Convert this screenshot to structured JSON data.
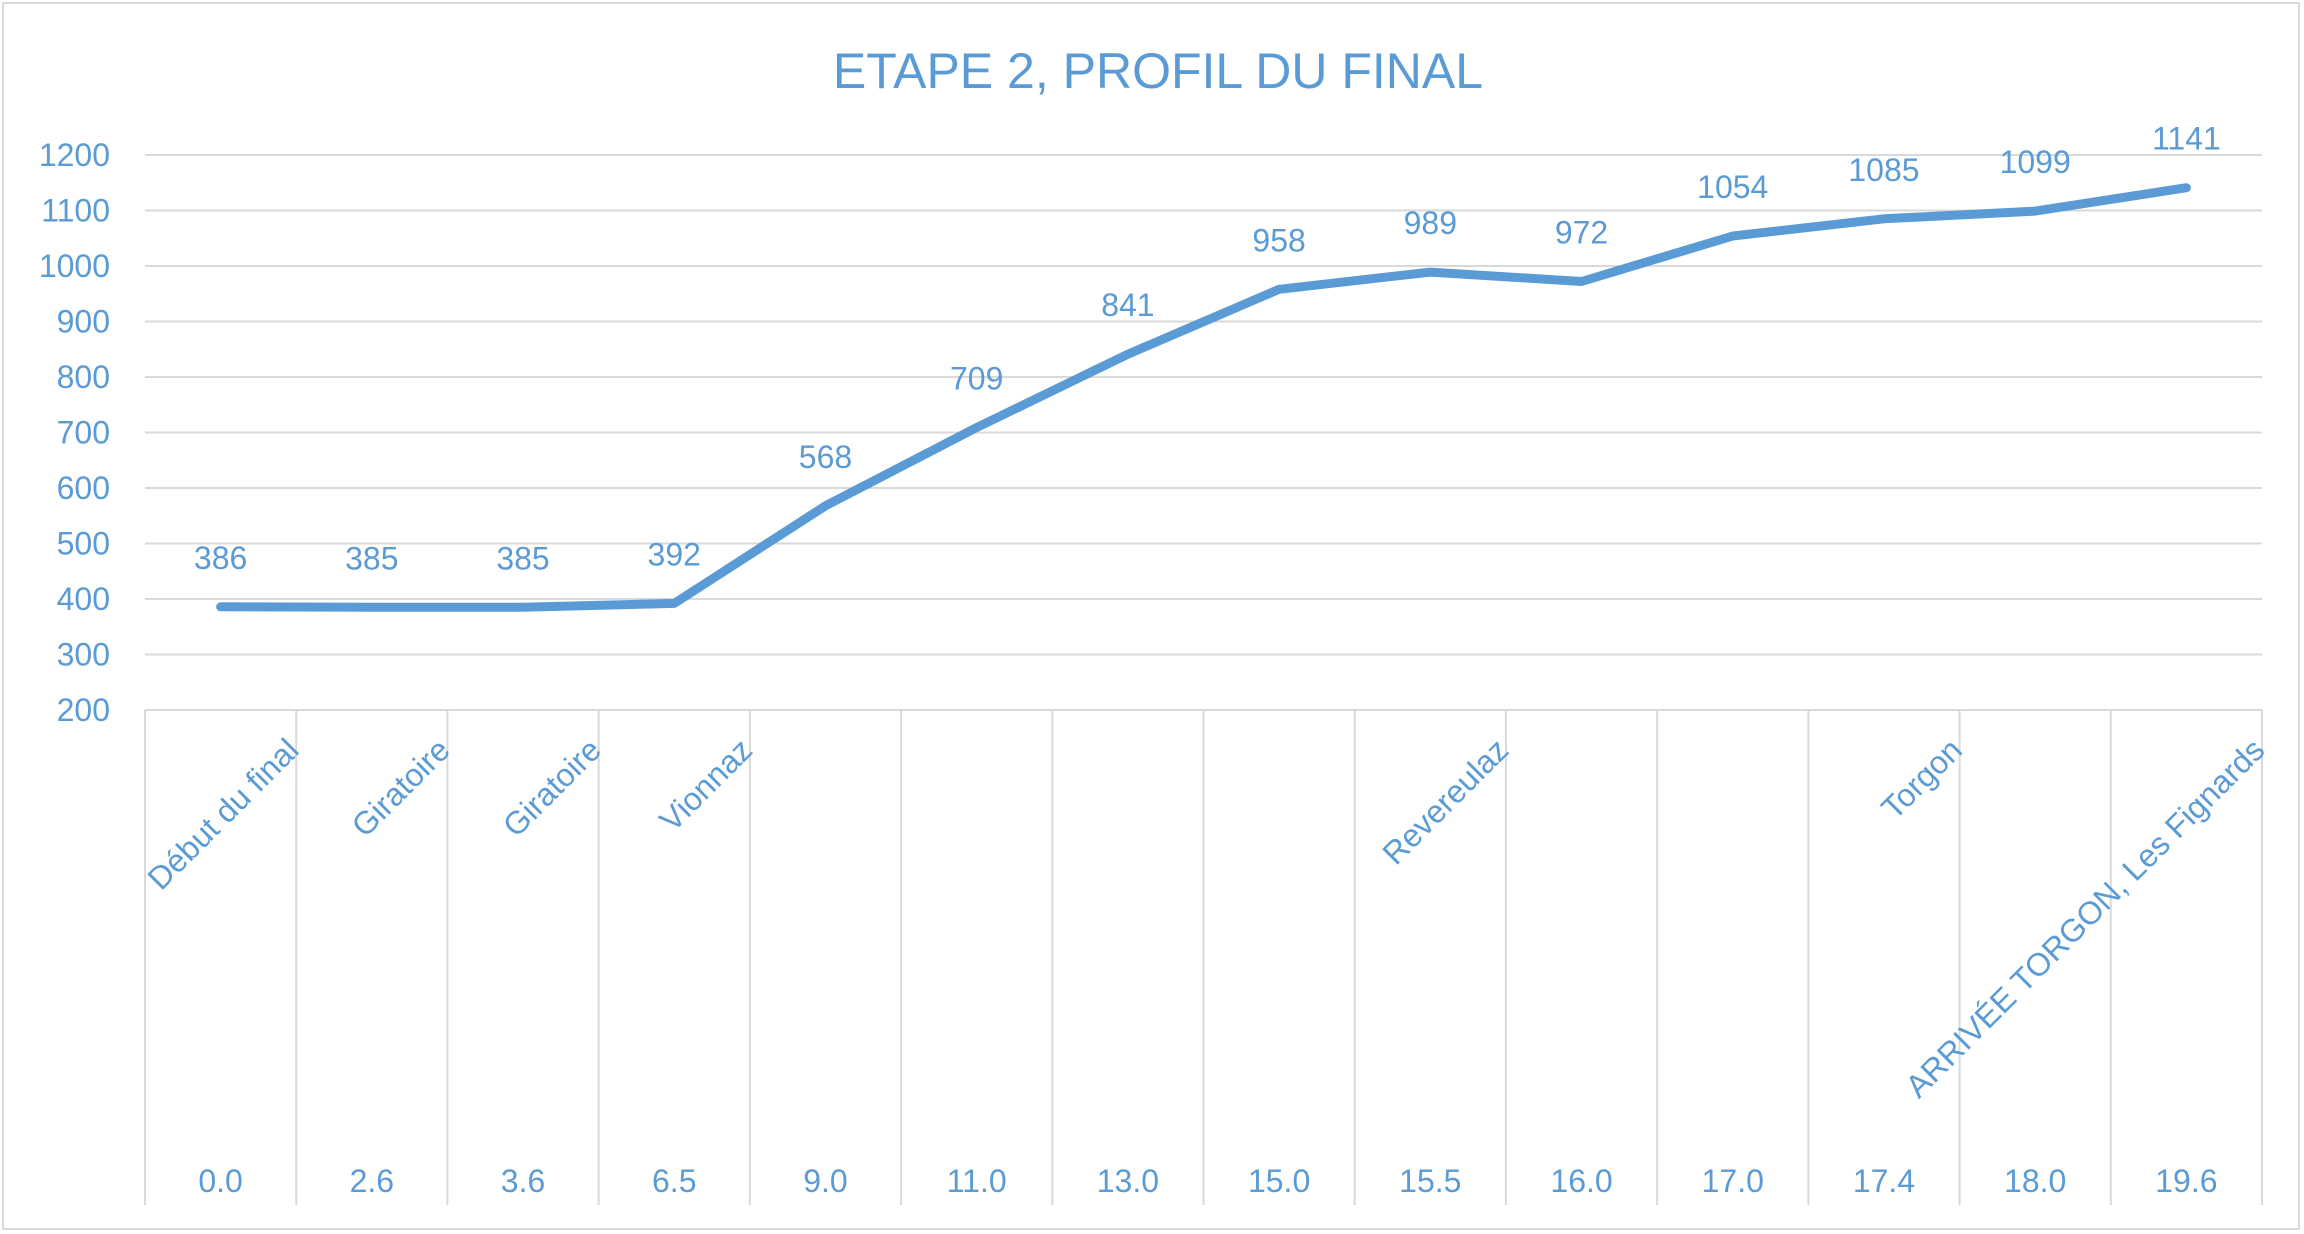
{
  "chart_data": {
    "type": "line",
    "title": "ETAPE 2,  PROFIL DU FINAL",
    "ylim": [
      200,
      1200
    ],
    "ytick_step": 100,
    "yticks": [
      "200",
      "300",
      "400",
      "500",
      "600",
      "700",
      "800",
      "900",
      "1000",
      "1100",
      "1200"
    ],
    "grid": true,
    "legend": "none",
    "categories": [
      {
        "place": "Début du final",
        "km": "0.0"
      },
      {
        "place": "Giratoire",
        "km": "2.6"
      },
      {
        "place": "Giratoire",
        "km": "3.6"
      },
      {
        "place": "Vionnaz",
        "km": "6.5"
      },
      {
        "place": "",
        "km": "9.0"
      },
      {
        "place": "",
        "km": "11.0"
      },
      {
        "place": "",
        "km": "13.0"
      },
      {
        "place": "",
        "km": "15.0"
      },
      {
        "place": "Revereulaz",
        "km": "15.5"
      },
      {
        "place": "",
        "km": "16.0"
      },
      {
        "place": "",
        "km": "17.0"
      },
      {
        "place": "Torgon",
        "km": "17.4"
      },
      {
        "place": "",
        "km": "18.0"
      },
      {
        "place": "ARRIVÉE TORGON, Les Fignards",
        "km": "19.6"
      }
    ],
    "series": [
      {
        "color": "#5b9bd5",
        "values": [
          386,
          385,
          385,
          392,
          568,
          709,
          841,
          958,
          989,
          972,
          1054,
          1085,
          1099,
          1141
        ]
      }
    ]
  }
}
